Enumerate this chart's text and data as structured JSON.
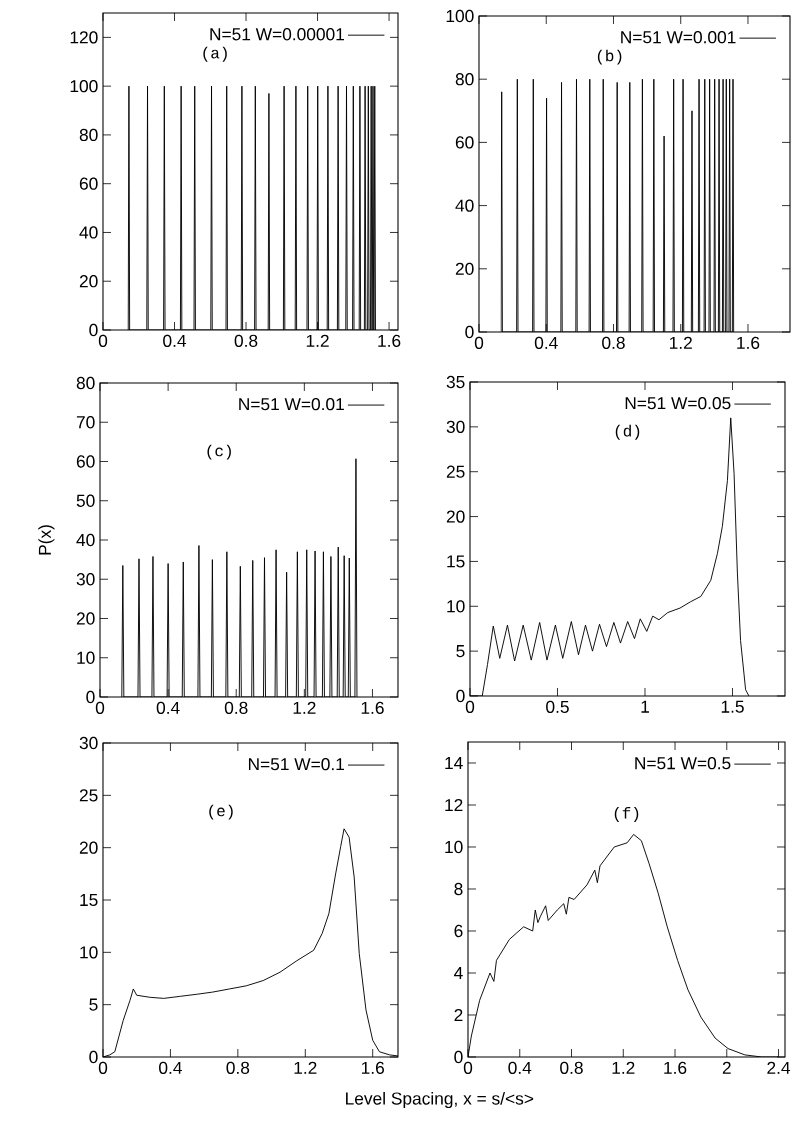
{
  "chart_data": [
    {
      "type": "line",
      "xlim": [
        0,
        1.65
      ],
      "xticks": [
        0,
        0.4,
        0.8,
        1.2,
        1.6
      ],
      "ylim": [
        0,
        130
      ],
      "yticks": [
        0,
        20,
        40,
        60,
        80,
        100,
        120
      ],
      "legend": "top right",
      "annotations": [
        "(a)"
      ],
      "series": [
        {
          "name": "N=51 W=0.00001",
          "color": "#000000",
          "x": [
            0.141,
            0.145,
            0.149,
            0.245,
            0.249,
            0.253,
            0.339,
            0.343,
            0.347,
            0.433,
            0.437,
            0.441,
            0.509,
            0.513,
            0.517,
            0.603,
            0.607,
            0.611,
            0.688,
            0.692,
            0.696,
            0.773,
            0.777,
            0.781,
            0.848,
            0.852,
            0.856,
            0.924,
            0.928,
            0.932,
            1.009,
            1.013,
            1.017,
            1.075,
            1.079,
            1.083,
            1.141,
            1.145,
            1.149,
            1.197,
            1.201,
            1.205,
            1.254,
            1.258,
            1.262,
            1.311,
            1.315,
            1.319,
            1.358,
            1.362,
            1.366,
            1.396,
            1.4,
            1.404,
            1.433,
            1.437,
            1.441,
            1.462,
            1.466,
            1.47,
            1.48,
            1.484,
            1.488,
            1.496,
            1.5,
            1.504,
            1.506,
            1.51,
            1.514,
            1.516,
            1.52,
            1.524
          ],
          "values": [
            0,
            100,
            0,
            0,
            100,
            0,
            0,
            100,
            0,
            0,
            100,
            0,
            0,
            100,
            0,
            0,
            100,
            0,
            0,
            100,
            0,
            0,
            100,
            0,
            0,
            100,
            0,
            0,
            97,
            0,
            0,
            100,
            0,
            0,
            100,
            0,
            0,
            100,
            0,
            0,
            100,
            0,
            0,
            100,
            0,
            0,
            100,
            0,
            0,
            100,
            0,
            0,
            100,
            0,
            0,
            100,
            0,
            0,
            100,
            0,
            0,
            100,
            0,
            0,
            100,
            0,
            0,
            100,
            0,
            0,
            100,
            0
          ]
        }
      ]
    },
    {
      "type": "line",
      "xlim": [
        0,
        1.85
      ],
      "xticks": [
        0,
        0.4,
        0.8,
        1.2,
        1.6
      ],
      "ylim": [
        0,
        100
      ],
      "yticks": [
        0,
        20,
        40,
        60,
        80,
        100
      ],
      "legend": "top right",
      "annotations": [
        "(b)"
      ],
      "series": [
        {
          "name": "N=51 W=0.001",
          "color": "#000000",
          "x": [
            0.131,
            0.135,
            0.139,
            0.224,
            0.228,
            0.232,
            0.319,
            0.323,
            0.327,
            0.398,
            0.402,
            0.406,
            0.487,
            0.491,
            0.495,
            0.576,
            0.58,
            0.584,
            0.655,
            0.659,
            0.663,
            0.735,
            0.739,
            0.743,
            0.818,
            0.822,
            0.826,
            0.893,
            0.897,
            0.901,
            0.968,
            0.972,
            0.976,
            1.036,
            1.04,
            1.044,
            1.097,
            1.101,
            1.105,
            1.154,
            1.158,
            1.162,
            1.21,
            1.214,
            1.218,
            1.263,
            1.267,
            1.271,
            1.305,
            1.309,
            1.313,
            1.339,
            1.343,
            1.347,
            1.368,
            1.372,
            1.376,
            1.398,
            1.402,
            1.406,
            1.424,
            1.428,
            1.432,
            1.448,
            1.452,
            1.456,
            1.467,
            1.471,
            1.475,
            1.487,
            1.491,
            1.495,
            1.507,
            1.511,
            1.515
          ],
          "values": [
            0,
            76,
            0,
            0,
            80,
            0,
            0,
            80,
            0,
            0,
            74,
            0,
            0,
            79,
            0,
            0,
            80,
            0,
            0,
            80,
            0,
            0,
            80,
            0,
            0,
            79,
            0,
            0,
            79,
            0,
            0,
            80,
            0,
            0,
            80,
            0,
            0,
            62,
            0,
            0,
            80,
            0,
            0,
            80,
            0,
            0,
            70,
            0,
            0,
            80,
            0,
            0,
            80,
            0,
            0,
            80,
            0,
            0,
            80,
            0,
            0,
            80,
            0,
            0,
            80,
            0,
            0,
            80,
            0,
            0,
            80,
            0,
            0,
            80,
            0
          ]
        }
      ]
    },
    {
      "type": "line",
      "xlim": [
        0,
        1.75
      ],
      "xticks": [
        0,
        0.4,
        0.8,
        1.2,
        1.6
      ],
      "ylim": [
        0,
        80
      ],
      "yticks": [
        0,
        10,
        20,
        30,
        40,
        50,
        60,
        70,
        80
      ],
      "legend": "top right",
      "annotations": [
        "(c)"
      ],
      "ylabel": "P(x)",
      "series": [
        {
          "name": "N=51 W=0.01",
          "color": "#000000",
          "x": [
            0.128,
            0.134,
            0.14,
            0.223,
            0.229,
            0.235,
            0.305,
            0.311,
            0.317,
            0.394,
            0.4,
            0.406,
            0.483,
            0.489,
            0.495,
            0.575,
            0.581,
            0.587,
            0.654,
            0.66,
            0.666,
            0.739,
            0.745,
            0.751,
            0.818,
            0.824,
            0.83,
            0.891,
            0.897,
            0.903,
            0.96,
            0.966,
            0.972,
            1.028,
            1.034,
            1.04,
            1.09,
            1.096,
            1.102,
            1.153,
            1.159,
            1.165,
            1.208,
            1.214,
            1.22,
            1.257,
            1.263,
            1.269,
            1.306,
            1.312,
            1.318,
            1.35,
            1.356,
            1.362,
            1.393,
            1.399,
            1.405,
            1.428,
            1.434,
            1.44,
            1.458,
            1.464,
            1.47,
            1.497,
            1.503,
            1.509
          ],
          "values": [
            0,
            33.5,
            0,
            0,
            35.2,
            0,
            0,
            35.8,
            0,
            0,
            34,
            0,
            0,
            34.4,
            0,
            0,
            38.6,
            0,
            0,
            35,
            0,
            0,
            37,
            0,
            0,
            33.3,
            0,
            0,
            34.8,
            0,
            0,
            35.5,
            0,
            0,
            37.5,
            0,
            0,
            31.8,
            0,
            0,
            37,
            0,
            0,
            37.5,
            0,
            0,
            37.2,
            0,
            0,
            37,
            0,
            0,
            35.8,
            0,
            0,
            38.2,
            0,
            0,
            36,
            0,
            0,
            35.4,
            0,
            0,
            60.7,
            0
          ]
        }
      ]
    },
    {
      "type": "line",
      "xlim": [
        0,
        1.8
      ],
      "xticks": [
        0,
        0.5,
        1,
        1.5
      ],
      "ylim": [
        0,
        35
      ],
      "yticks": [
        0,
        5,
        10,
        15,
        20,
        25,
        30,
        35
      ],
      "legend": "top right",
      "annotations": [
        "(d)"
      ],
      "series": [
        {
          "name": "N=51 W=0.05",
          "color": "#000000",
          "x": [
            0,
            0.07,
            0.1,
            0.133,
            0.17,
            0.214,
            0.255,
            0.304,
            0.35,
            0.398,
            0.44,
            0.488,
            0.53,
            0.579,
            0.62,
            0.66,
            0.7,
            0.74,
            0.78,
            0.822,
            0.86,
            0.901,
            0.94,
            0.973,
            1.01,
            1.044,
            1.08,
            1.13,
            1.2,
            1.26,
            1.319,
            1.376,
            1.414,
            1.442,
            1.471,
            1.49,
            1.509,
            1.528,
            1.546,
            1.575,
            1.594
          ],
          "values": [
            0,
            0,
            3.5,
            7.8,
            4.2,
            7.9,
            3.9,
            7.9,
            4.0,
            8.2,
            4.0,
            7.9,
            4.2,
            8.3,
            4.6,
            7.9,
            5.0,
            8.0,
            5.5,
            8.2,
            5.9,
            8.3,
            6.4,
            8.6,
            7.2,
            8.9,
            8.5,
            9.3,
            9.8,
            10.5,
            11.1,
            12.9,
            15.9,
            18.9,
            24,
            31,
            24.8,
            13.7,
            6.2,
            0.7,
            0
          ]
        }
      ]
    },
    {
      "type": "line",
      "xlim": [
        0,
        1.75
      ],
      "xticks": [
        0,
        0.4,
        0.8,
        1.2,
        1.6
      ],
      "ylim": [
        0,
        30
      ],
      "yticks": [
        0,
        5,
        10,
        15,
        20,
        25,
        30
      ],
      "legend": "top right",
      "annotations": [
        "(e)"
      ],
      "xlabel": "Level Spacing, x = s/<s>",
      "series": [
        {
          "name": "N=51 W=0.1",
          "color": "#000000",
          "x": [
            0,
            0.04,
            0.07,
            0.12,
            0.16,
            0.18,
            0.2,
            0.28,
            0.36,
            0.46,
            0.56,
            0.65,
            0.75,
            0.85,
            0.95,
            1.05,
            1.15,
            1.25,
            1.3,
            1.34,
            1.38,
            1.41,
            1.43,
            1.46,
            1.49,
            1.52,
            1.56,
            1.6,
            1.64,
            1.7,
            1.75
          ],
          "values": [
            0,
            0.2,
            0.5,
            3.5,
            5.4,
            6.5,
            5.9,
            5.7,
            5.6,
            5.8,
            6.0,
            6.2,
            6.5,
            6.8,
            7.3,
            8.1,
            9.2,
            10.2,
            11.8,
            13.7,
            17.5,
            20.1,
            21.8,
            21,
            17.2,
            9.9,
            4.5,
            1.6,
            0.5,
            0.2,
            0.1
          ]
        }
      ]
    },
    {
      "type": "line",
      "xlim": [
        0,
        2.45
      ],
      "xticks": [
        0,
        0.4,
        0.8,
        1.2,
        1.6,
        2,
        2.4
      ],
      "ylim": [
        0,
        15
      ],
      "yticks": [
        0,
        2,
        4,
        6,
        8,
        10,
        12,
        14
      ],
      "legend": "top right",
      "annotations": [
        "(f)"
      ],
      "series": [
        {
          "name": "N=51 W=0.5",
          "color": "#000000",
          "x": [
            0,
            0.026,
            0.09,
            0.17,
            0.2,
            0.22,
            0.25,
            0.32,
            0.43,
            0.5,
            0.52,
            0.54,
            0.56,
            0.6,
            0.62,
            0.69,
            0.74,
            0.76,
            0.78,
            0.82,
            0.92,
            0.98,
            1.0,
            1.02,
            1.13,
            1.23,
            1.28,
            1.34,
            1.4,
            1.47,
            1.54,
            1.62,
            1.7,
            1.8,
            1.91,
            2.01,
            2.14,
            2.27,
            2.4
          ],
          "values": [
            0,
            1,
            2.7,
            4.0,
            3.6,
            4.6,
            4.9,
            5.6,
            6.2,
            6.0,
            7.0,
            6.4,
            6.7,
            7.2,
            6.5,
            7.0,
            7.3,
            6.8,
            7.6,
            7.5,
            8.2,
            8.9,
            8.3,
            9.1,
            10.0,
            10.2,
            10.6,
            10.3,
            9.2,
            7.8,
            6.2,
            4.6,
            3.2,
            1.9,
            0.9,
            0.4,
            0.1,
            0,
            0
          ]
        }
      ]
    }
  ]
}
